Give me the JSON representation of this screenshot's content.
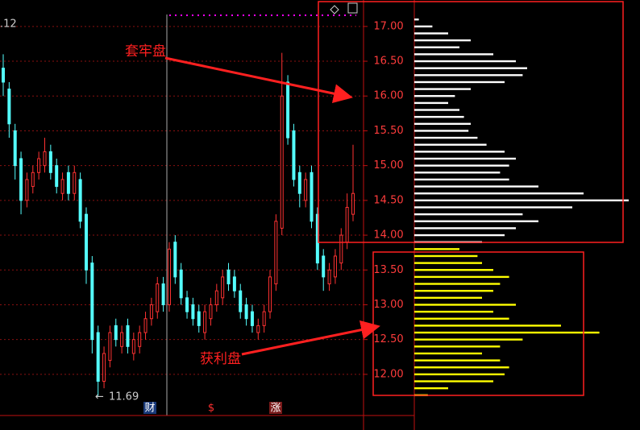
{
  "chart_data": {
    "type": "candlestick",
    "top_left_text": ".12",
    "ylim": [
      11.2,
      17.38
    ],
    "yticks": [
      {
        "value": 12,
        "label": "12.00"
      },
      {
        "value": 12.5,
        "label": "12.50"
      },
      {
        "value": 13,
        "label": "13.00"
      },
      {
        "value": 13.5,
        "label": "13.50"
      },
      {
        "value": 14,
        "label": "14.00"
      },
      {
        "value": 14.5,
        "label": "14.50"
      },
      {
        "value": 15,
        "label": "15.00"
      },
      {
        "value": 15.5,
        "label": "15.50"
      },
      {
        "value": 16,
        "label": "16.00"
      },
      {
        "value": 16.5,
        "label": "16.50"
      },
      {
        "value": 17,
        "label": "17.00"
      }
    ],
    "grid": true,
    "up_color": "#ff3232",
    "down_color": "#54ffff",
    "open": [
      16.4,
      16.1,
      15.5,
      15.1,
      14.5,
      14.7,
      14.9,
      15.0,
      15.2,
      15.0,
      14.6,
      14.9,
      14.6,
      14.8,
      14.3,
      13.6,
      12.6,
      11.9,
      12.2,
      12.7,
      12.4,
      12.7,
      12.3,
      12.4,
      12.6,
      12.8,
      12.9,
      13.3,
      13.0,
      13.9,
      13.5,
      13.1,
      13.0,
      12.9,
      12.6,
      12.8,
      13.0,
      13.1,
      13.5,
      13.4,
      13.2,
      13.0,
      12.9,
      12.6,
      12.7,
      12.9,
      13.3,
      14.1,
      16.2,
      15.5,
      14.9,
      14.5,
      14.9,
      14.3,
      13.7,
      13.3,
      13.4,
      13.6,
      13.9,
      14.3
    ],
    "high": [
      16.6,
      16.2,
      15.6,
      15.2,
      14.9,
      15.0,
      15.2,
      15.4,
      15.3,
      15.1,
      14.9,
      15.0,
      15.0,
      14.9,
      14.4,
      13.7,
      12.7,
      12.4,
      12.7,
      12.8,
      12.7,
      12.8,
      12.6,
      12.7,
      12.9,
      13.1,
      13.4,
      13.4,
      13.9,
      14.0,
      13.6,
      13.2,
      13.1,
      13.0,
      13.0,
      13.1,
      13.3,
      13.5,
      13.6,
      13.5,
      13.3,
      13.1,
      13.0,
      12.8,
      13.0,
      13.5,
      14.3,
      16.62,
      16.3,
      15.6,
      15.0,
      14.9,
      15.0,
      14.4,
      13.8,
      13.6,
      13.8,
      14.1,
      14.6,
      15.3
    ],
    "low": [
      16.0,
      15.4,
      14.8,
      14.3,
      14.4,
      14.6,
      14.8,
      14.9,
      14.8,
      14.6,
      14.5,
      14.5,
      14.5,
      14.1,
      13.3,
      12.3,
      11.69,
      11.8,
      12.1,
      12.4,
      12.3,
      12.3,
      12.2,
      12.3,
      12.5,
      12.7,
      12.8,
      12.9,
      12.9,
      13.3,
      13.0,
      12.8,
      12.7,
      12.6,
      12.5,
      12.7,
      12.9,
      13.0,
      13.2,
      13.1,
      12.8,
      12.7,
      12.6,
      12.5,
      12.6,
      12.8,
      13.2,
      14.0,
      15.3,
      14.7,
      14.4,
      14.4,
      14.1,
      13.5,
      13.2,
      13.2,
      13.3,
      13.5,
      13.8,
      14.2
    ],
    "close": [
      16.2,
      15.6,
      15.0,
      14.5,
      14.8,
      14.9,
      15.1,
      15.2,
      14.9,
      14.7,
      14.8,
      14.6,
      14.9,
      14.2,
      13.5,
      12.5,
      11.9,
      12.3,
      12.6,
      12.5,
      12.6,
      12.4,
      12.5,
      12.6,
      12.8,
      13.0,
      13.3,
      13.0,
      13.8,
      13.4,
      13.1,
      12.9,
      12.8,
      12.7,
      12.9,
      13.0,
      13.2,
      13.4,
      13.3,
      13.2,
      12.9,
      12.8,
      12.7,
      12.7,
      12.9,
      13.4,
      14.2,
      16.0,
      15.4,
      14.8,
      14.6,
      14.8,
      14.2,
      13.6,
      13.4,
      13.5,
      13.7,
      14.0,
      14.4,
      14.6
    ],
    "low_label": 11.69,
    "markers": [
      "财",
      "$",
      "涨"
    ],
    "profile": {
      "xlim": [
        0,
        100
      ],
      "segments": [
        {
          "color": "#ffffff",
          "prices": [
            17.1,
            17.0,
            16.9,
            16.8,
            16.7,
            16.6,
            16.5,
            16.4,
            16.3,
            16.2,
            16.1,
            16.0,
            15.9,
            15.8,
            15.7,
            15.6,
            15.5,
            15.4,
            15.3,
            15.2,
            15.1,
            15.0,
            14.9,
            14.8,
            14.7,
            14.6,
            14.5,
            14.4,
            14.3,
            14.2,
            14.1,
            14.0,
            13.9
          ],
          "values": [
            2,
            8,
            15,
            25,
            20,
            35,
            45,
            50,
            48,
            40,
            25,
            18,
            15,
            20,
            22,
            25,
            24,
            28,
            32,
            40,
            45,
            42,
            38,
            42,
            55,
            75,
            95,
            70,
            48,
            55,
            45,
            40,
            30
          ]
        },
        {
          "color": "#ffff00",
          "prices": [
            13.8,
            13.7,
            13.6,
            13.5,
            13.4,
            13.3,
            13.2,
            13.1,
            13.0,
            12.9,
            12.8,
            12.7,
            12.6,
            12.5,
            12.4,
            12.3,
            12.2,
            12.1,
            12.0,
            11.9,
            11.8,
            11.7
          ],
          "values": [
            20,
            28,
            30,
            35,
            42,
            38,
            35,
            30,
            45,
            35,
            42,
            65,
            82,
            48,
            38,
            30,
            38,
            42,
            40,
            35,
            15,
            6
          ]
        }
      ]
    },
    "annotations": [
      "套牢盘",
      "获利盘"
    ]
  }
}
